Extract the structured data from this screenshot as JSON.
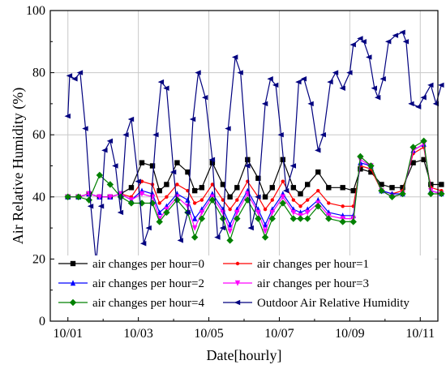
{
  "chart_data": {
    "type": "line",
    "xlabel": "Date[hourly]",
    "ylabel": "Air Relative Humidity (%)",
    "xlim": [
      -0.5,
      10.5
    ],
    "ylim": [
      0,
      100
    ],
    "x_ticks": [
      {
        "x": 0,
        "label": "10/01"
      },
      {
        "x": 2,
        "label": "10/03"
      },
      {
        "x": 4,
        "label": "10/05"
      },
      {
        "x": 6,
        "label": "10/07"
      },
      {
        "x": 8,
        "label": "10/09"
      },
      {
        "x": 10,
        "label": "10/11"
      }
    ],
    "y_ticks": [
      0,
      20,
      40,
      60,
      80,
      100
    ],
    "grid": true,
    "legend_position": "bottom",
    "series": [
      {
        "name": "air changes per hour=0",
        "color": "#000000",
        "marker": "square",
        "x": [
          0,
          0.3,
          0.6,
          0.9,
          1.2,
          1.5,
          1.8,
          2.1,
          2.4,
          2.6,
          2.8,
          3.1,
          3.4,
          3.6,
          3.8,
          4.1,
          4.4,
          4.6,
          4.8,
          5.1,
          5.4,
          5.6,
          5.8,
          6.1,
          6.4,
          6.6,
          6.8,
          7.1,
          7.4,
          7.8,
          8.1,
          8.3,
          8.6,
          8.9,
          9.2,
          9.5,
          9.8,
          10.1,
          10.3,
          10.6
        ],
        "y": [
          40,
          40,
          41,
          40,
          40,
          41,
          43,
          51,
          50,
          42,
          44,
          51,
          48,
          42,
          43,
          51,
          44,
          40,
          43,
          52,
          46,
          40,
          43,
          52,
          43,
          41,
          44,
          48,
          43,
          43,
          42,
          49,
          48,
          44,
          43,
          43,
          51,
          52,
          44,
          44
        ]
      },
      {
        "name": "air changes per hour=1",
        "color": "#ff0000",
        "marker": "dot",
        "x": [
          0,
          0.3,
          0.6,
          0.9,
          1.2,
          1.5,
          1.8,
          2.1,
          2.4,
          2.6,
          2.8,
          3.1,
          3.4,
          3.6,
          3.8,
          4.1,
          4.4,
          4.6,
          4.8,
          5.1,
          5.4,
          5.6,
          5.8,
          6.1,
          6.4,
          6.6,
          6.8,
          7.1,
          7.4,
          7.8,
          8.1,
          8.3,
          8.6,
          8.9,
          9.2,
          9.5,
          9.8,
          10.1,
          10.3,
          10.6
        ],
        "y": [
          40,
          40,
          41,
          40,
          40,
          41,
          40,
          45,
          44,
          38,
          40,
          44,
          42,
          38,
          39,
          44,
          39,
          36,
          39,
          45,
          40,
          36,
          39,
          45,
          39,
          37,
          39,
          42,
          38,
          37,
          37,
          50,
          49,
          42,
          41,
          42,
          54,
          56,
          43,
          42
        ]
      },
      {
        "name": "air changes per hour=2",
        "color": "#0000ff",
        "marker": "triangle",
        "x": [
          0,
          0.3,
          0.6,
          0.9,
          1.2,
          1.5,
          1.8,
          2.1,
          2.4,
          2.6,
          2.8,
          3.1,
          3.4,
          3.6,
          3.8,
          4.1,
          4.4,
          4.6,
          4.8,
          5.1,
          5.4,
          5.6,
          5.8,
          6.1,
          6.4,
          6.6,
          6.8,
          7.1,
          7.4,
          7.8,
          8.1,
          8.3,
          8.6,
          8.9,
          9.2,
          9.5,
          9.8,
          10.1,
          10.3,
          10.6
        ],
        "y": [
          40,
          40,
          41,
          40,
          40,
          41,
          39,
          42,
          41,
          35,
          37,
          41,
          39,
          33,
          36,
          41,
          36,
          31,
          36,
          42,
          36,
          31,
          36,
          41,
          36,
          35,
          36,
          39,
          35,
          34,
          34,
          51,
          50,
          42,
          41,
          41,
          55,
          57,
          42,
          41
        ]
      },
      {
        "name": "air changes per hour=3",
        "color": "#ff00ff",
        "marker": "triangle-down",
        "x": [
          0,
          0.3,
          0.6,
          0.9,
          1.2,
          1.5,
          1.8,
          2.1,
          2.4,
          2.6,
          2.8,
          3.1,
          3.4,
          3.6,
          3.8,
          4.1,
          4.4,
          4.6,
          4.8,
          5.1,
          5.4,
          5.6,
          5.8,
          6.1,
          6.4,
          6.6,
          6.8,
          7.1,
          7.4,
          7.8,
          8.1,
          8.3,
          8.6,
          8.9,
          9.2,
          9.5,
          9.8,
          10.1,
          10.3,
          10.6
        ],
        "y": [
          40,
          40,
          41,
          40,
          40,
          41,
          39,
          41,
          40,
          33,
          36,
          40,
          37,
          30,
          35,
          40,
          35,
          29,
          35,
          41,
          35,
          29,
          35,
          40,
          35,
          34,
          35,
          38,
          34,
          33,
          33,
          52,
          50,
          42,
          40,
          41,
          55,
          57,
          42,
          41
        ]
      },
      {
        "name": "air changes per hour=4",
        "color": "#008000",
        "marker": "diamond",
        "x": [
          0,
          0.3,
          0.6,
          0.9,
          1.2,
          1.5,
          1.8,
          2.1,
          2.4,
          2.6,
          2.8,
          3.1,
          3.4,
          3.6,
          3.8,
          4.1,
          4.4,
          4.6,
          4.8,
          5.1,
          5.4,
          5.6,
          5.8,
          6.1,
          6.4,
          6.6,
          6.8,
          7.1,
          7.4,
          7.8,
          8.1,
          8.3,
          8.6,
          8.9,
          9.2,
          9.5,
          9.8,
          10.1,
          10.3,
          10.6
        ],
        "y": [
          40,
          40,
          39,
          47,
          44,
          40,
          38,
          38,
          38,
          32,
          35,
          39,
          35,
          27,
          33,
          39,
          33,
          26,
          33,
          39,
          33,
          27,
          33,
          38,
          33,
          33,
          33,
          37,
          33,
          32,
          32,
          53,
          50,
          42,
          40,
          41,
          56,
          58,
          41,
          41
        ]
      },
      {
        "name": "Outdoor Air Relative Humidity",
        "color": "#00007f",
        "marker": "triangle-left",
        "x": [
          0,
          0.05,
          0.2,
          0.35,
          0.5,
          0.65,
          0.8,
          0.95,
          1.05,
          1.2,
          1.35,
          1.5,
          1.65,
          1.8,
          2.0,
          2.15,
          2.3,
          2.5,
          2.65,
          2.8,
          3.0,
          3.2,
          3.4,
          3.55,
          3.7,
          3.9,
          4.1,
          4.25,
          4.4,
          4.55,
          4.75,
          4.9,
          5.1,
          5.2,
          5.4,
          5.6,
          5.75,
          5.9,
          6.05,
          6.2,
          6.4,
          6.55,
          6.7,
          6.9,
          7.1,
          7.25,
          7.45,
          7.6,
          7.8,
          8.0,
          8.1,
          8.3,
          8.4,
          8.55,
          8.7,
          8.8,
          8.95,
          9.1,
          9.3,
          9.5,
          9.6,
          9.75,
          9.95,
          10.1,
          10.3,
          10.45,
          10.6
        ],
        "y": [
          66,
          79,
          78,
          80,
          62,
          37,
          19,
          37,
          55,
          58,
          50,
          35,
          60,
          65,
          45,
          25,
          30,
          60,
          77,
          75,
          48,
          26,
          35,
          65,
          80,
          72,
          52,
          27,
          30,
          62,
          85,
          80,
          50,
          30,
          40,
          70,
          78,
          76,
          60,
          42,
          50,
          77,
          78,
          70,
          55,
          60,
          77,
          80,
          75,
          80,
          89,
          91,
          90,
          85,
          75,
          72,
          78,
          90,
          92,
          93,
          90,
          70,
          69,
          72,
          76,
          70,
          76
        ]
      }
    ]
  }
}
